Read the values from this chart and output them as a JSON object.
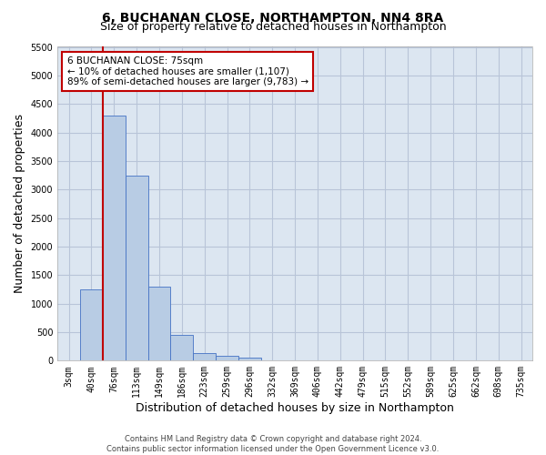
{
  "title": "6, BUCHANAN CLOSE, NORTHAMPTON, NN4 8RA",
  "subtitle": "Size of property relative to detached houses in Northampton",
  "xlabel": "Distribution of detached houses by size in Northampton",
  "ylabel": "Number of detached properties",
  "footer_line1": "Contains HM Land Registry data © Crown copyright and database right 2024.",
  "footer_line2": "Contains public sector information licensed under the Open Government Licence v3.0.",
  "categories": [
    "3sqm",
    "40sqm",
    "76sqm",
    "113sqm",
    "149sqm",
    "186sqm",
    "223sqm",
    "259sqm",
    "296sqm",
    "332sqm",
    "369sqm",
    "406sqm",
    "442sqm",
    "479sqm",
    "515sqm",
    "552sqm",
    "589sqm",
    "625sqm",
    "662sqm",
    "698sqm",
    "735sqm"
  ],
  "values": [
    0,
    1250,
    4300,
    3250,
    1300,
    450,
    130,
    90,
    60,
    0,
    0,
    0,
    0,
    0,
    0,
    0,
    0,
    0,
    0,
    0,
    0
  ],
  "bar_color": "#b8cce4",
  "bar_edge_color": "#4472c4",
  "vline_x_index": 2,
  "vline_color": "#c00000",
  "annotation_text": "6 BUCHANAN CLOSE: 75sqm\n← 10% of detached houses are smaller (1,107)\n89% of semi-detached houses are larger (9,783) →",
  "annotation_box_color": "#ffffff",
  "annotation_box_edge_color": "#c00000",
  "ylim": [
    0,
    5500
  ],
  "yticks": [
    0,
    500,
    1000,
    1500,
    2000,
    2500,
    3000,
    3500,
    4000,
    4500,
    5000,
    5500
  ],
  "bg_color": "#ffffff",
  "plot_bg_color": "#dce6f1",
  "grid_color": "#b8c4d8",
  "title_fontsize": 10,
  "subtitle_fontsize": 9,
  "tick_fontsize": 7,
  "ylabel_fontsize": 9,
  "xlabel_fontsize": 9,
  "annotation_fontsize": 7.5,
  "footer_fontsize": 6
}
